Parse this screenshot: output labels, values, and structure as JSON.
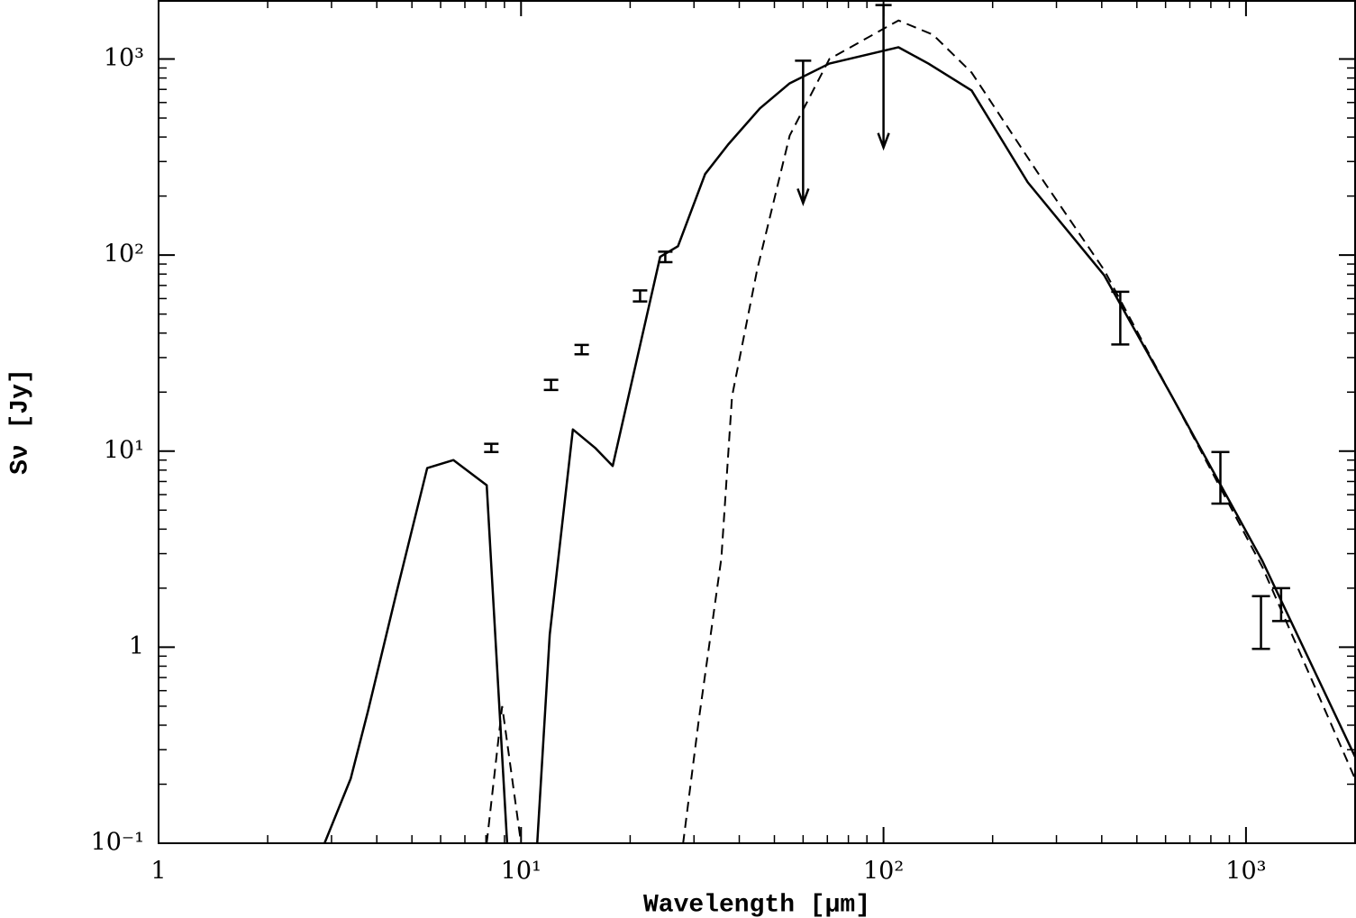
{
  "chart_data": {
    "type": "line",
    "x_label": "Wavelength [μm]",
    "y_label": "Sν [Jy]",
    "xscale": "log",
    "yscale": "log",
    "xlim": [
      1,
      2000
    ],
    "ylim": [
      0.1,
      2000
    ],
    "xticks": [
      1,
      {
        "value": 10,
        "label": "10¹"
      },
      {
        "value": 100,
        "label": "10²"
      },
      {
        "value": 1000,
        "label": "10³"
      }
    ],
    "yticks": [
      {
        "value": 0.1,
        "label": "10⁻¹"
      },
      1,
      {
        "value": 10,
        "label": "10¹"
      },
      {
        "value": 100,
        "label": "10²"
      },
      {
        "value": 1000,
        "label": "10³"
      }
    ],
    "xminorticks": [
      2,
      3,
      4,
      5,
      6,
      7,
      8,
      9,
      20,
      30,
      40,
      50,
      60,
      70,
      80,
      90,
      200,
      300,
      400,
      500,
      600,
      700,
      800,
      900
    ],
    "yminorticks": [
      0.2,
      0.3,
      0.4,
      0.5,
      0.6,
      0.7,
      0.8,
      0.9,
      2,
      3,
      4,
      5,
      6,
      7,
      8,
      9,
      20,
      30,
      40,
      50,
      60,
      70,
      80,
      90,
      200,
      300,
      400,
      500,
      600,
      700,
      800,
      900
    ],
    "series": [
      {
        "style": "solid",
        "color": "#000000",
        "x": [
          2.87,
          3.39,
          3.78,
          4.54,
          5.51,
          6.51,
          8.04,
          9.3,
          10.9,
          12.0,
          13.9,
          16.0,
          17.9,
          24.2,
          27.1,
          32.2,
          37.3,
          45.6,
          55.1,
          70.9,
          110,
          133,
          175,
          250,
          406,
          625,
          1110,
          2023
        ],
        "values": [
          0.1,
          0.214,
          0.47,
          1.92,
          8.2,
          9.0,
          6.7,
          0.06,
          0.06,
          1.16,
          12.9,
          10.4,
          8.4,
          98,
          111,
          259,
          367,
          560,
          752,
          948,
          1148,
          948,
          691,
          235,
          79,
          19,
          2.75,
          0.264
        ]
      },
      {
        "style": "dashed",
        "color": "#000000",
        "x": [
          8.04,
          8.87,
          10.0,
          10.2,
          27.5,
          28.0,
          30.9,
          35.7,
          38.2,
          44.8,
          55.1,
          70.9,
          110,
          137,
          175,
          265,
          406,
          625,
          1110,
          2023
        ],
        "values": [
          0.1,
          0.5,
          0.1,
          0.06,
          0.06,
          0.1,
          0.42,
          2.85,
          19,
          84,
          407,
          1000,
          1573,
          1330,
          853,
          267,
          84,
          19,
          2.56,
          0.203
        ]
      },
      {
        "style": "errorbar",
        "color": "#000000",
        "x": [
          8.28,
          12.1,
          14.7,
          21.3,
          25,
          450,
          850,
          1100,
          1250
        ],
        "values": [
          10.4,
          21.8,
          33,
          62,
          98,
          50,
          7.65,
          1.4,
          1.68
        ],
        "errors": [
          0.5,
          1.3,
          1.8,
          4,
          6,
          15,
          2.25,
          0.42,
          0.32
        ]
      },
      {
        "style": "upper_limit",
        "color": "#000000",
        "x": [
          60,
          100
        ],
        "values": [
          980,
          1884
        ]
      }
    ]
  }
}
